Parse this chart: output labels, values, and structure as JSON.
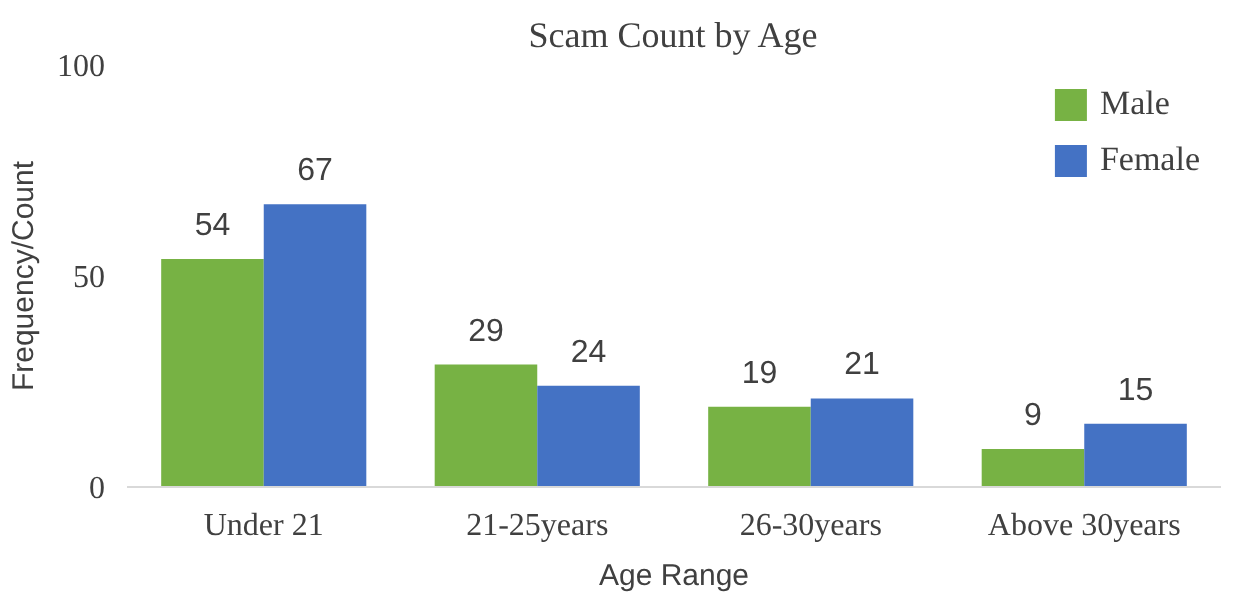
{
  "chart_data": {
    "type": "bar",
    "title": "Scam Count by Age",
    "xlabel": "Age Range",
    "ylabel": "Frequency/Count",
    "categories": [
      "Under 21",
      "21-25years",
      "26-30years",
      "Above 30years"
    ],
    "series": [
      {
        "name": "Male",
        "color": "#77b244",
        "values": [
          54,
          29,
          19,
          9
        ]
      },
      {
        "name": "Female",
        "color": "#4472c4",
        "values": [
          67,
          24,
          21,
          15
        ]
      }
    ],
    "ylim": [
      0,
      100
    ],
    "yticks": [
      0,
      50,
      100
    ],
    "grid": false,
    "legend": "top right",
    "data_labels": true
  }
}
